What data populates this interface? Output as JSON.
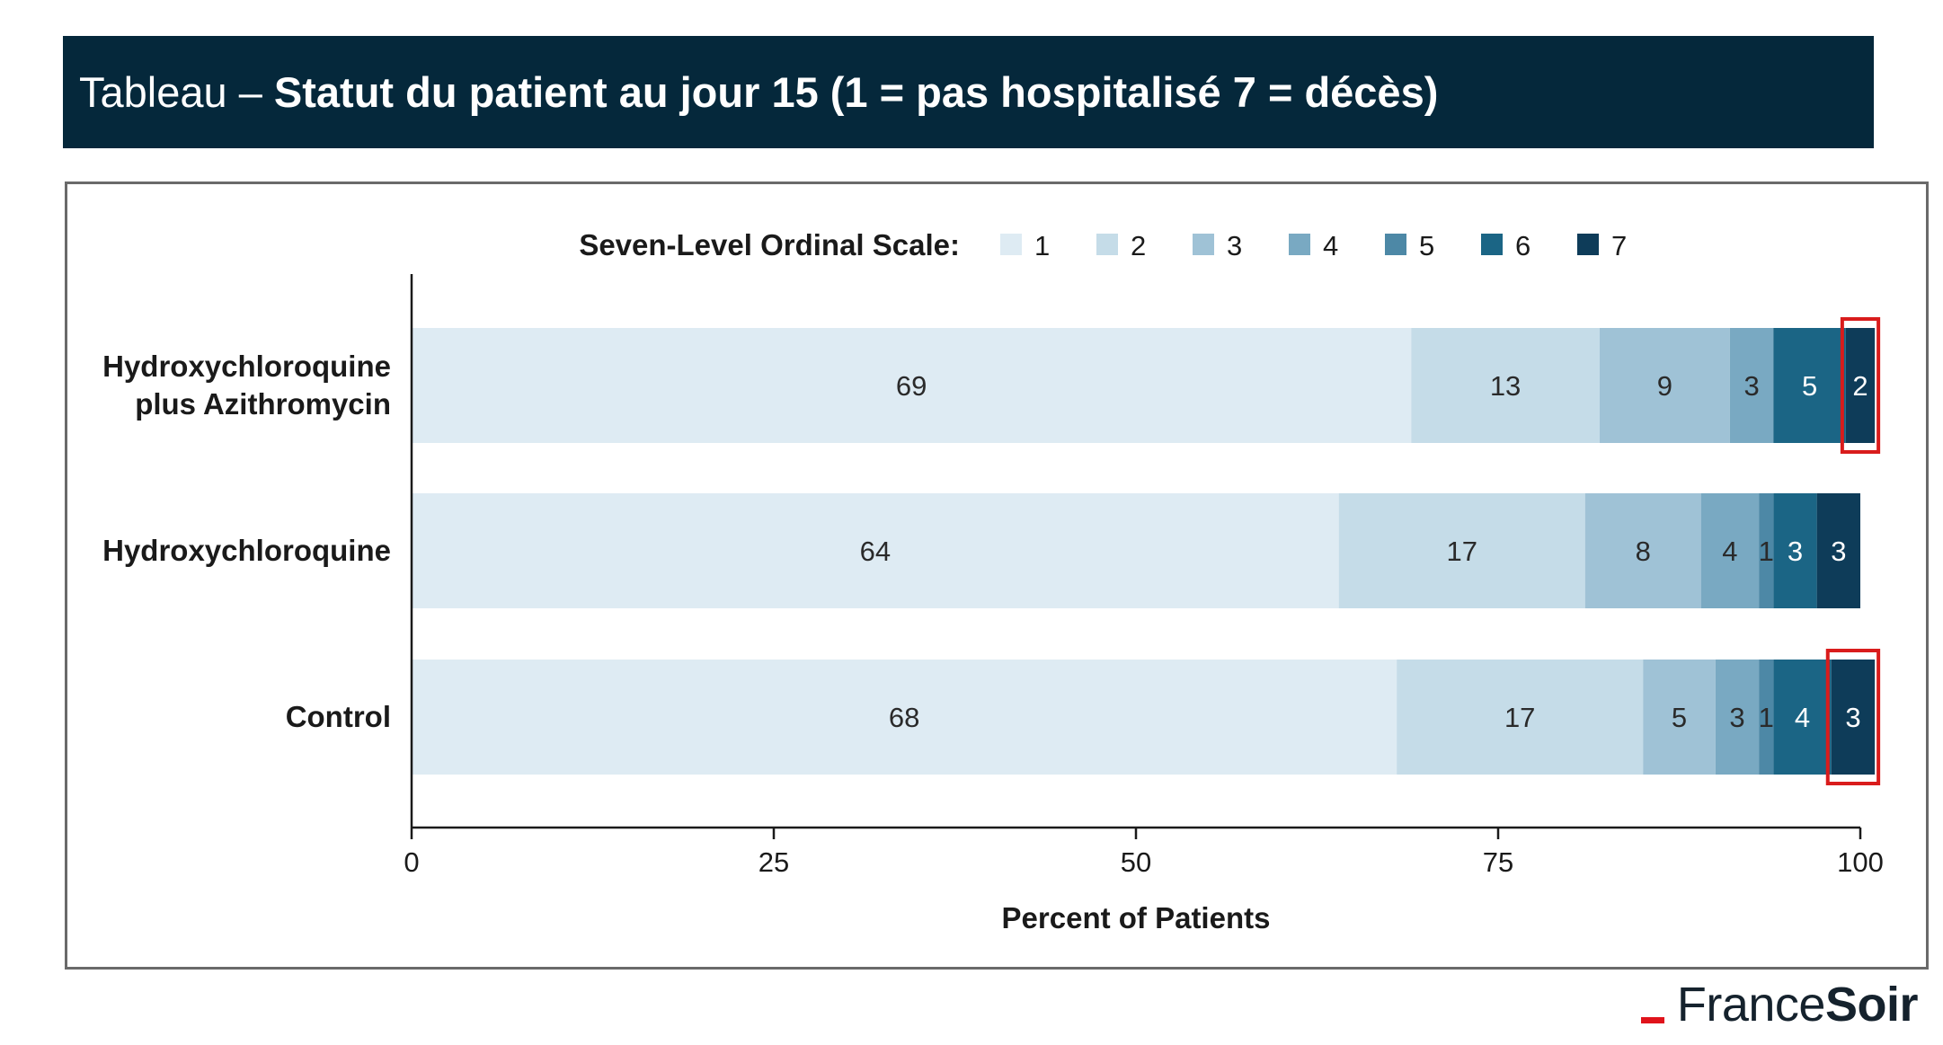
{
  "header": {
    "prefix": "Tableau – ",
    "title": "Statut du patient au jour 15 (1 = pas hospitalisé 7 = décès)"
  },
  "brand": {
    "part1": "France",
    "part2": "Soir",
    "accent_color": "#e0131b"
  },
  "chart_data": {
    "type": "bar",
    "orientation": "horizontal",
    "stacked": true,
    "legend_title": "Seven-Level Ordinal Scale:",
    "legend_placement": "top",
    "categories": [
      "Hydroxychloroquine plus Azithromycin",
      "Hydroxychloroquine",
      "Control"
    ],
    "category_label_lines": [
      [
        "Hydroxychloroquine",
        "plus Azithromycin"
      ],
      [
        "Hydroxychloroquine"
      ],
      [
        "Control"
      ]
    ],
    "series": [
      {
        "name": "1",
        "color": "#deebf3",
        "values": [
          69,
          64,
          68
        ]
      },
      {
        "name": "2",
        "color": "#c5dce8",
        "values": [
          13,
          17,
          17
        ]
      },
      {
        "name": "3",
        "color": "#9fc2d6",
        "values": [
          9,
          8,
          5
        ]
      },
      {
        "name": "4",
        "color": "#79a9c2",
        "values": [
          3,
          4,
          3
        ]
      },
      {
        "name": "5",
        "color": "#4d88a6",
        "values": [
          0,
          1,
          1
        ]
      },
      {
        "name": "6",
        "color": "#1b6585",
        "values": [
          5,
          3,
          4
        ]
      },
      {
        "name": "7",
        "color": "#0e3c59",
        "values": [
          2,
          3,
          3
        ]
      }
    ],
    "xlabel": "Percent of Patients",
    "ylabel": "",
    "xlim": [
      0,
      100
    ],
    "xticks": [
      0,
      25,
      50,
      75,
      100
    ],
    "grid": false,
    "highlight_color": "#d91c1c",
    "highlights": [
      {
        "category_index": 0,
        "series": "7"
      },
      {
        "category_index": 2,
        "series": "7"
      }
    ]
  }
}
